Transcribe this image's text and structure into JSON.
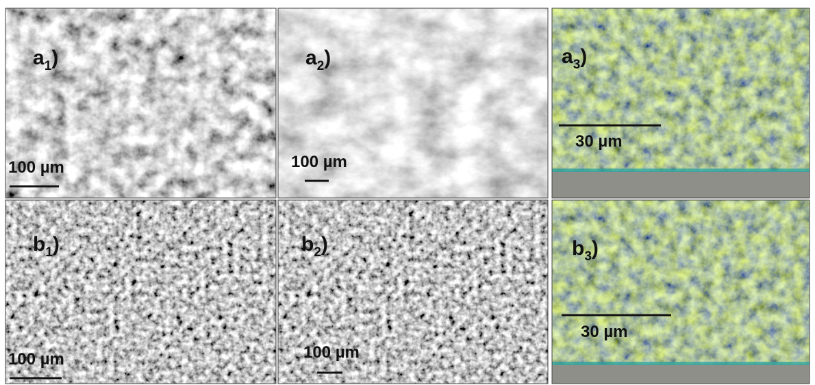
{
  "panels": [
    {
      "label": {
        "main": "a",
        "sub": "1",
        "close": ")"
      },
      "scale": "100 µm"
    },
    {
      "label": {
        "main": "a",
        "sub": "2",
        "close": ")"
      },
      "scale": "100 µm"
    },
    {
      "label": {
        "main": "a",
        "sub": "3",
        "close": ")"
      },
      "scale": "30 µm"
    },
    {
      "label": {
        "main": "b",
        "sub": "1",
        "close": ")"
      },
      "scale": "100 µm"
    },
    {
      "label": {
        "main": "b",
        "sub": "2",
        "close": ")"
      },
      "scale": "100 µm"
    },
    {
      "label": {
        "main": "b",
        "sub": "3",
        "close": ")"
      },
      "scale": "30 µm"
    }
  ]
}
